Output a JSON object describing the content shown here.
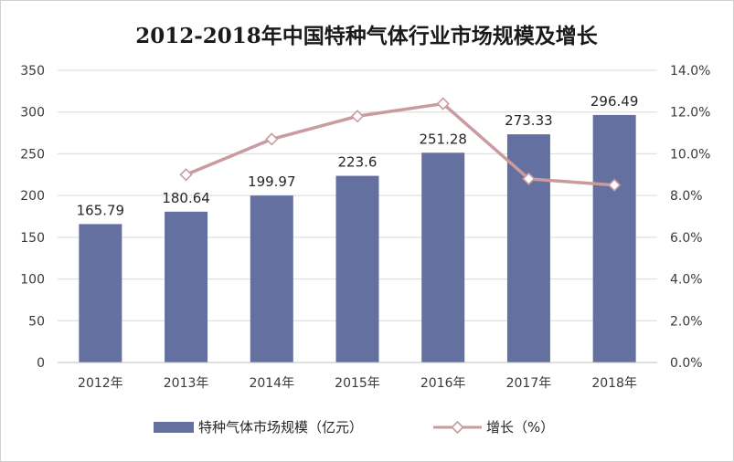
{
  "chart_data": {
    "type": "bar",
    "title": "2012-2018年中国特种气体行业市场规模及增长",
    "categories": [
      "2012年",
      "2013年",
      "2014年",
      "2015年",
      "2016年",
      "2017年",
      "2018年"
    ],
    "series": [
      {
        "name": "特种气体市场规模（亿元）",
        "type": "bar",
        "axis": "left",
        "color": "#6471a0",
        "values": [
          165.79,
          180.64,
          199.97,
          223.6,
          251.28,
          273.33,
          296.49
        ],
        "data_labels": [
          "165.79",
          "180.64",
          "199.97",
          "223.6",
          "251.28",
          "273.33",
          "296.49"
        ]
      },
      {
        "name": "增长（%）",
        "type": "line",
        "axis": "right",
        "color": "#c99a9f",
        "values": [
          null,
          9.0,
          10.7,
          11.8,
          12.4,
          8.8,
          8.5
        ]
      }
    ],
    "y_left": {
      "min": 0,
      "max": 350,
      "step": 50,
      "ticks": [
        "0",
        "50",
        "100",
        "150",
        "200",
        "250",
        "300",
        "350"
      ]
    },
    "y_right": {
      "min": 0,
      "max": 14,
      "step": 2,
      "ticks": [
        "0.0%",
        "2.0%",
        "4.0%",
        "6.0%",
        "8.0%",
        "10.0%",
        "12.0%",
        "14.0%"
      ]
    },
    "grid": true,
    "legend": "bottom"
  }
}
